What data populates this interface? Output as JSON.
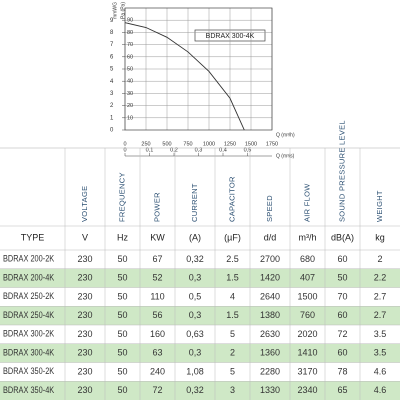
{
  "chart_data": {
    "type": "line",
    "title": "BDRAX 300-4K",
    "y_label": "Pa (Pa)",
    "y2_label": "mmWG",
    "x_label": "Q (m³/h)",
    "x2_label": "Q (m³/s)",
    "x": [
      0,
      250,
      500,
      750,
      1000,
      1250,
      1420
    ],
    "series": [
      {
        "name": "BDRAX 300-4K",
        "color": "#333333",
        "values": [
          88,
          84,
          76,
          64,
          48,
          26,
          0
        ]
      }
    ],
    "xlim": [
      0,
      1750
    ],
    "xticks": [
      0,
      250,
      500,
      750,
      1000,
      1250,
      1500,
      1750
    ],
    "x2lim": [
      0,
      0.6
    ],
    "x2ticks": [
      0,
      {
        "value": 0.1,
        "label": "0,1"
      },
      {
        "value": 0.2,
        "label": "0,2"
      },
      {
        "value": 0.3,
        "label": "0,3"
      },
      {
        "value": 0.4,
        "label": "0,4"
      },
      {
        "value": 0.5,
        "label": "0,5"
      }
    ],
    "ylim": [
      0,
      100
    ],
    "yticks": [
      10,
      20,
      30,
      40,
      50,
      60,
      70,
      80,
      90
    ],
    "y2lim": [
      0,
      10
    ],
    "y2ticks": [
      0,
      1,
      2,
      3,
      4,
      5,
      6,
      7,
      8,
      9
    ],
    "grid": true
  },
  "table": {
    "headers": [
      "VOLTAGE",
      "FREQUENCY",
      "POWER",
      "CURRENT",
      "CAPACITOR",
      "SPEED",
      "AIR FLOW",
      "SOUND PRESSURE LEVEL",
      "WEIGHT"
    ],
    "units": [
      "TYPE",
      "V",
      "Hz",
      "KW",
      "(A)",
      "(µF)",
      "d/d",
      "m³/h",
      "dB(A)",
      "kg"
    ],
    "rows": [
      [
        "BDRAX 200-2K",
        "230",
        "50",
        "67",
        "0,32",
        "2.5",
        "2700",
        "680",
        "60",
        "2"
      ],
      [
        "BDRAX 200-4K",
        "230",
        "50",
        "52",
        "0,3",
        "1.5",
        "1420",
        "407",
        "50",
        "2.2"
      ],
      [
        "BDRAX 250-2K",
        "230",
        "50",
        "110",
        "0,5",
        "4",
        "2640",
        "1500",
        "70",
        "2.7"
      ],
      [
        "BDRAX 250-4K",
        "230",
        "50",
        "56",
        "0,3",
        "1.5",
        "1380",
        "760",
        "60",
        "2.7"
      ],
      [
        "BDRAX 300-2K",
        "230",
        "50",
        "160",
        "0,63",
        "5",
        "2630",
        "2020",
        "72",
        "3.5"
      ],
      [
        "BDRAX 300-4K",
        "230",
        "50",
        "63",
        "0,3",
        "2",
        "1360",
        "1410",
        "60",
        "3.5"
      ],
      [
        "BDRAX 350-2K",
        "230",
        "50",
        "240",
        "1,08",
        "5",
        "2280",
        "3170",
        "78",
        "4.6"
      ],
      [
        "BDRAX 350-4K",
        "230",
        "50",
        "72",
        "0,32",
        "3",
        "1330",
        "2340",
        "65",
        "4.6"
      ]
    ]
  }
}
